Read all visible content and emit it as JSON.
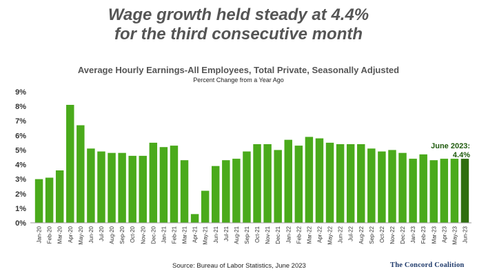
{
  "headline": {
    "line1": "Wage growth held steady at 4.4%",
    "line2": "for the third consecutive month"
  },
  "annotation": {
    "line1": "June 2023:",
    "line2": "4.4%"
  },
  "footer": {
    "source": "Source: Bureau of Labor Statistics, June 2023",
    "logo": "The Concord Coalition"
  },
  "colors": {
    "bar": "#4aaa1b",
    "highlight_bar": "#2f6e0f",
    "headline": "#555555",
    "annotation": "#1e5a0c"
  },
  "chart_data": {
    "type": "bar",
    "title": "Average Hourly Earnings-All Employees, Total Private, Seasonally Adjusted",
    "subtitle": "Percent Change from a Year Ago",
    "xlabel": "",
    "ylabel": "",
    "ylim": [
      0,
      9
    ],
    "yticks": [
      "0%",
      "1%",
      "2%",
      "3%",
      "4%",
      "5%",
      "6%",
      "7%",
      "8%",
      "9%"
    ],
    "grid": false,
    "categories": [
      "Jan-20",
      "Feb-20",
      "Mar-20",
      "Apr-20",
      "May-20",
      "Jun-20",
      "Jul-20",
      "Aug-20",
      "Sep-20",
      "Oct-20",
      "Nov-20",
      "Dec-20",
      "Jan-21",
      "Feb-21",
      "Mar-21",
      "Apr-21",
      "May-21",
      "Jun-21",
      "Jul-21",
      "Aug-21",
      "Sep-21",
      "Oct-21",
      "Nov-21",
      "Dec-21",
      "Jan-22",
      "Feb-22",
      "Mar-22",
      "Apr-22",
      "May-22",
      "Jun-22",
      "Jul-22",
      "Aug-22",
      "Sep-22",
      "Oct-22",
      "Nov-22",
      "Dec-22",
      "Jan-23",
      "Feb-23",
      "Mar-23",
      "Apr-23",
      "May-23",
      "Jun-23"
    ],
    "values": [
      3.0,
      3.1,
      3.6,
      8.1,
      6.7,
      5.1,
      4.9,
      4.8,
      4.8,
      4.6,
      4.6,
      5.5,
      5.2,
      5.3,
      4.3,
      0.6,
      2.2,
      3.9,
      4.3,
      4.4,
      4.9,
      5.4,
      5.4,
      5.0,
      5.7,
      5.3,
      5.9,
      5.8,
      5.5,
      5.4,
      5.4,
      5.4,
      5.1,
      4.9,
      5.0,
      4.8,
      4.4,
      4.7,
      4.3,
      4.4,
      4.4,
      4.4
    ],
    "highlight_index": 41
  }
}
